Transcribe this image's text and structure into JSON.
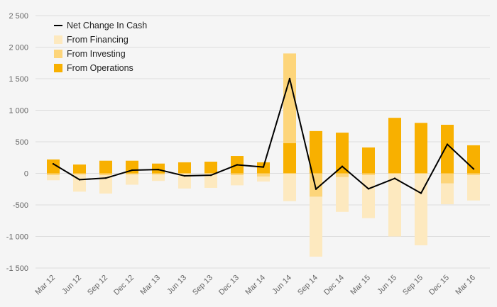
{
  "chart_data": {
    "type": "bar",
    "categories": [
      "Mar 12",
      "Jun 12",
      "Sep 12",
      "Dec 12",
      "Mar 13",
      "Jun 13",
      "Sep 13",
      "Dec 13",
      "Mar 14",
      "Jun 14",
      "Sep 14",
      "Dec 14",
      "Mar 15",
      "Jun 15",
      "Sep 15",
      "Dec 15",
      "Mar 16"
    ],
    "ylim": [
      -1500,
      2500
    ],
    "yticks": [
      {
        "value": 2500,
        "label": "2 500"
      },
      {
        "value": 2000,
        "label": "2 000"
      },
      {
        "value": 1500,
        "label": "1 500"
      },
      {
        "value": 1000,
        "label": "1 000"
      },
      {
        "value": 500,
        "label": "500"
      },
      {
        "value": 0,
        "label": "0"
      },
      {
        "value": -500,
        "label": "-500"
      },
      {
        "value": -1000,
        "label": "-1 000"
      },
      {
        "value": -1500,
        "label": "-1 500"
      }
    ],
    "grid": true,
    "legend_position": "top-left",
    "series": [
      {
        "name": "Net Change In Cash",
        "type": "line",
        "color": "#000000",
        "values": [
          150,
          -100,
          -75,
          50,
          60,
          -40,
          -30,
          135,
          100,
          1500,
          -250,
          110,
          -245,
          -80,
          -315,
          460,
          70
        ]
      },
      {
        "name": "From Financing",
        "type": "bar",
        "color": "#fde9bf",
        "values": [
          -80,
          -270,
          -290,
          -160,
          -100,
          -240,
          -230,
          -160,
          -80,
          -440,
          -950,
          -550,
          -680,
          -1000,
          -1140,
          -330,
          -400
        ]
      },
      {
        "name": "From Investing",
        "type": "bar",
        "color": "#fdd57a",
        "values": [
          -30,
          -20,
          -30,
          -20,
          -20,
          0,
          0,
          -30,
          -50,
          1420,
          -370,
          -60,
          -30,
          0,
          0,
          -160,
          -30
        ]
      },
      {
        "name": "From Operations",
        "type": "bar",
        "color": "#f8b000",
        "values": [
          220,
          140,
          200,
          200,
          155,
          175,
          185,
          275,
          175,
          480,
          670,
          645,
          410,
          880,
          800,
          770,
          445
        ]
      }
    ]
  }
}
